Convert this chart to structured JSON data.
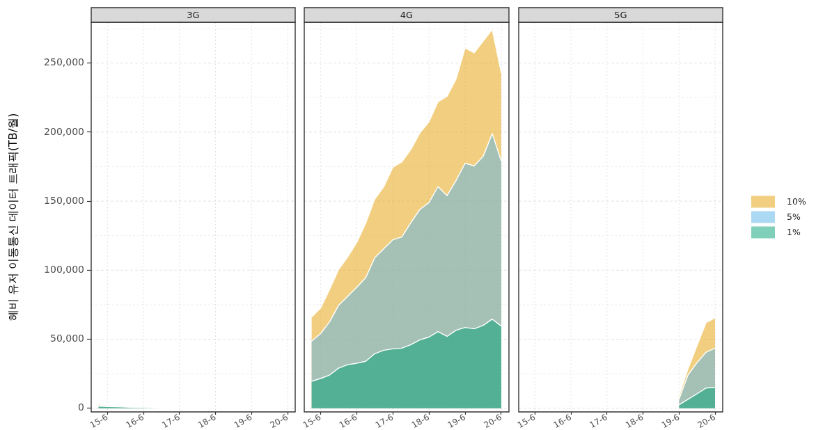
{
  "chart_data": [
    {
      "type": "area",
      "title": "3G",
      "ylabel": "헤비 유저 이동통신 데이터 트래픽(TB/월)",
      "categories": [
        null,
        "15-6",
        null,
        null,
        null,
        "16-6",
        null,
        null,
        null,
        "17-6",
        null,
        null,
        null,
        "18-6",
        null,
        null,
        null,
        "19-6",
        null,
        null,
        null,
        "20-6"
      ],
      "series": [
        {
          "color": "#f2cf80",
          "values": [
            2900,
            2500,
            2100,
            1700,
            1300,
            1000,
            700,
            500,
            300,
            200,
            100,
            100,
            0,
            0,
            0,
            0,
            0,
            0,
            0,
            0,
            0,
            0
          ]
        },
        {
          "color": "#abd9f4",
          "values": [
            2100,
            1800,
            1500,
            1200,
            900,
            700,
            500,
            300,
            200,
            100,
            100,
            0,
            0,
            0,
            0,
            0,
            0,
            0,
            0,
            0,
            0,
            0
          ]
        },
        {
          "color": "#80cfb9",
          "values": [
            1400,
            1200,
            1000,
            800,
            600,
            400,
            300,
            200,
            100,
            100,
            0,
            0,
            0,
            0,
            0,
            0,
            0,
            0,
            0,
            0,
            0,
            0
          ]
        }
      ],
      "ylim": [
        -2700,
        279600
      ],
      "yticks": [
        0,
        {
          "value": 50000,
          "label": "50,000"
        },
        {
          "value": 100000,
          "label": "100,000"
        },
        {
          "value": 150000,
          "label": "150,000"
        },
        {
          "value": 200000,
          "label": "200,000"
        },
        {
          "value": 250000,
          "label": "250,000"
        }
      ],
      "grid": true
    },
    {
      "type": "area",
      "title": "4G",
      "categories": [
        null,
        "15-6",
        null,
        null,
        null,
        "16-6",
        null,
        null,
        null,
        "17-6",
        null,
        null,
        null,
        "18-6",
        null,
        null,
        null,
        "19-6",
        null,
        null,
        null,
        "20-6"
      ],
      "series": [
        {
          "color": "#f2cf80",
          "values": [
            66000,
            72500,
            86000,
            100500,
            109500,
            120000,
            134000,
            151500,
            160500,
            174500,
            178500,
            187500,
            199500,
            207500,
            222000,
            226000,
            238500,
            261000,
            257500,
            266000,
            274500,
            243000
          ]
        },
        {
          "color": "#abd9f4",
          "values": [
            48500,
            54000,
            62500,
            74500,
            81000,
            87500,
            94500,
            109000,
            115500,
            122000,
            124000,
            134500,
            144000,
            149000,
            160500,
            154000,
            165000,
            177500,
            175500,
            182500,
            199000,
            179000
          ]
        },
        {
          "color": "#80cfb9",
          "values": [
            19500,
            21500,
            24000,
            29000,
            31500,
            32500,
            34000,
            39500,
            42000,
            43000,
            43500,
            46000,
            49500,
            51500,
            55500,
            52000,
            56500,
            58500,
            57500,
            60000,
            64500,
            59500
          ]
        }
      ],
      "ylim": [
        -2700,
        279600
      ],
      "yticks": [
        0,
        50000,
        100000,
        150000,
        200000,
        250000
      ],
      "tick_labels": "x",
      "grid": true
    },
    {
      "type": "area",
      "title": "5G",
      "categories": [
        null,
        "15-6",
        null,
        null,
        null,
        "16-6",
        null,
        null,
        null,
        "17-6",
        null,
        null,
        null,
        "18-6",
        null,
        null,
        null,
        "19-6",
        null,
        null,
        null,
        "20-6"
      ],
      "series": [
        {
          "name": "10%",
          "color": "#f2cf80",
          "values": [
            null,
            null,
            null,
            null,
            null,
            null,
            null,
            null,
            null,
            null,
            null,
            null,
            null,
            null,
            null,
            null,
            null,
            9000,
            28500,
            45500,
            62000,
            65500
          ]
        },
        {
          "name": "5%",
          "color": "#abd9f4",
          "values": [
            null,
            null,
            null,
            null,
            null,
            null,
            null,
            null,
            null,
            null,
            null,
            null,
            null,
            null,
            null,
            null,
            null,
            6500,
            24000,
            33000,
            40500,
            43500
          ]
        },
        {
          "name": "1%",
          "color": "#80cfb9",
          "values": [
            null,
            null,
            null,
            null,
            null,
            null,
            null,
            null,
            null,
            null,
            null,
            null,
            null,
            null,
            null,
            null,
            null,
            2400,
            6400,
            10400,
            14600,
            15100
          ]
        }
      ],
      "ylim": [
        -2700,
        279600
      ],
      "yticks": [
        0,
        50000,
        100000,
        150000,
        200000,
        250000
      ],
      "tick_labels": "x",
      "grid": true,
      "legend": "right"
    }
  ]
}
